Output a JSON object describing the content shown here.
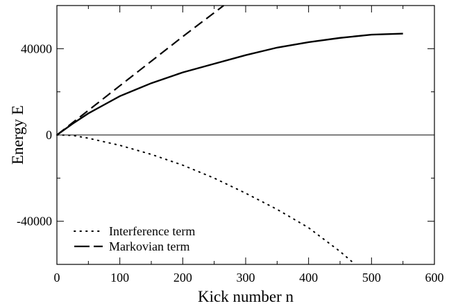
{
  "chart_data": {
    "type": "line",
    "xlabel": "Kick number n",
    "ylabel": "Energy E",
    "xlim": [
      0,
      600
    ],
    "ylim": [
      -60000,
      60000
    ],
    "x_ticks": [
      0,
      100,
      200,
      300,
      400,
      500,
      600
    ],
    "y_ticks": [
      -40000,
      0,
      40000
    ],
    "x_tick_labels": [
      "0",
      "100",
      "200",
      "300",
      "400",
      "500",
      "600"
    ],
    "y_tick_labels": [
      "-40000",
      "0",
      "40000"
    ],
    "grid": false,
    "legend": {
      "placement": "bottom-left",
      "entries": [
        {
          "label": "Interference term",
          "style": "dotted"
        },
        {
          "label": "Markovian term",
          "style": "dashed"
        }
      ]
    },
    "series": [
      {
        "style": "solid",
        "x": [
          0,
          25,
          50,
          75,
          100,
          150,
          200,
          250,
          300,
          350,
          400,
          450,
          500,
          550
        ],
        "y": [
          0,
          5200,
          10000,
          14000,
          18000,
          24000,
          29000,
          33000,
          37000,
          40500,
          43000,
          45000,
          46500,
          47000
        ]
      },
      {
        "name": "Markovian term",
        "style": "dashed",
        "x": [
          0,
          100,
          200,
          265
        ],
        "y": [
          0,
          22800,
          45600,
          60000
        ]
      },
      {
        "name": "Interference term",
        "style": "dotted",
        "x": [
          0,
          25,
          50,
          100,
          150,
          200,
          250,
          300,
          350,
          400,
          450,
          470
        ],
        "y": [
          0,
          -200,
          -1500,
          -4800,
          -9000,
          -14000,
          -20000,
          -27000,
          -34500,
          -43000,
          -54000,
          -59000
        ]
      },
      {
        "style": "thin",
        "x": [
          0,
          600
        ],
        "y": [
          0,
          0
        ]
      }
    ]
  }
}
